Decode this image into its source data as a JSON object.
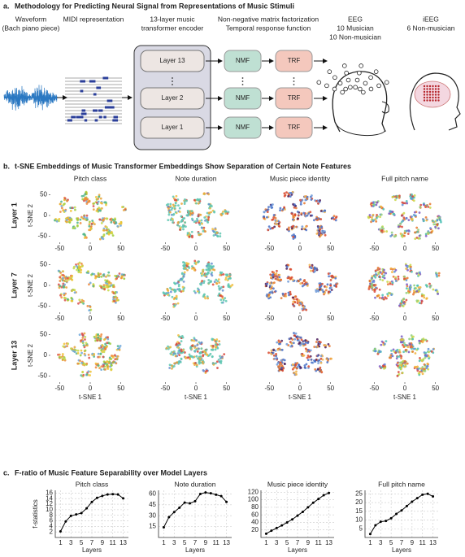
{
  "panel_a": {
    "label": "a.",
    "title": "Methodology for Predicting Neural Signal from Representations of Music Stimuli",
    "waveform": [
      "Waveform",
      "(Bach piano piece)"
    ],
    "midi": "MIDI representation",
    "encoder": [
      "13-layer music",
      "transformer encoder"
    ],
    "nmf_trf": [
      "Non-negative matrix factorization",
      "Temporal response function"
    ],
    "eeg": [
      "EEG",
      "10 Musician",
      "10 Non-musician"
    ],
    "ieeg": [
      "iEEG",
      "6 Non-musician"
    ],
    "layers": [
      "Layer 13",
      "Layer 2",
      "Layer 1"
    ],
    "nmf": "NMF",
    "trf": "TRF"
  },
  "panel_b": {
    "label": "b.",
    "title": "t-SNE Embeddings of Music Transformer Embeddings Show Separation of Certain Note Features",
    "columns": [
      "Pitch class",
      "Note duration",
      "Music piece identity",
      "Full pitch name"
    ],
    "rows": [
      "Layer 1",
      "Layer 7",
      "Layer 13"
    ],
    "xlabel": "t-SNE 1",
    "ylabel": "t-SNE 2",
    "xlim": [
      -65,
      65
    ],
    "xticks": [
      -50,
      0,
      50
    ],
    "ylim": [
      -65,
      65
    ],
    "yticks": [
      -50,
      0,
      50
    ]
  },
  "panel_c": {
    "label": "c.",
    "title": "F-ratio of Music Feature Separability over Model Layers",
    "xlabel": "Layers",
    "ylabel": "f-statistics",
    "charts": [
      {
        "type": "line",
        "title": "Pitch class",
        "x": [
          1,
          2,
          3,
          4,
          5,
          6,
          7,
          8,
          9,
          10,
          11,
          12,
          13
        ],
        "values": [
          2.2,
          5.8,
          7.8,
          8.3,
          8.8,
          10.5,
          12.8,
          14.3,
          15.0,
          15.5,
          15.6,
          15.5,
          14.1
        ],
        "xlim": [
          0,
          14
        ],
        "xticks": [
          1,
          3,
          5,
          7,
          9,
          11,
          13
        ],
        "ylim": [
          0,
          17
        ],
        "yticks": [
          2,
          4,
          6,
          8,
          10,
          12,
          14,
          16
        ],
        "grid": true,
        "color": "#000000"
      },
      {
        "type": "line",
        "title": "Note duration",
        "x": [
          1,
          2,
          3,
          4,
          5,
          6,
          7,
          8,
          9,
          10,
          11,
          12,
          13
        ],
        "values": [
          14,
          28,
          35,
          41,
          48,
          47,
          50,
          60,
          62,
          61,
          59,
          57,
          49
        ],
        "xlim": [
          0,
          14
        ],
        "xticks": [
          1,
          3,
          5,
          7,
          9,
          11,
          13
        ],
        "ylim": [
          0,
          65
        ],
        "yticks": [
          15,
          30,
          45,
          60
        ],
        "grid": true,
        "color": "#000000"
      },
      {
        "type": "line",
        "title": "Music piece identity",
        "x": [
          1,
          2,
          3,
          4,
          5,
          6,
          7,
          8,
          9,
          10,
          11,
          12,
          13
        ],
        "values": [
          10,
          18,
          25,
          32,
          40,
          48,
          58,
          68,
          80,
          92,
          102,
          112,
          118
        ],
        "xlim": [
          0,
          14
        ],
        "xticks": [
          1,
          3,
          5,
          7,
          9,
          11,
          13
        ],
        "ylim": [
          0,
          125
        ],
        "yticks": [
          20,
          40,
          60,
          80,
          100,
          120
        ],
        "grid": true,
        "color": "#000000"
      },
      {
        "type": "line",
        "title": "Full pitch name",
        "x": [
          1,
          2,
          3,
          4,
          5,
          6,
          7,
          8,
          9,
          10,
          11,
          12,
          13
        ],
        "values": [
          2,
          7,
          9,
          9.5,
          11,
          13.5,
          15.5,
          18,
          20.5,
          22.5,
          24.5,
          25,
          23.5
        ],
        "xlim": [
          0,
          14
        ],
        "xticks": [
          1,
          3,
          5,
          7,
          9,
          11,
          13
        ],
        "ylim": [
          0,
          27
        ],
        "yticks": [
          5,
          10,
          15,
          20,
          25
        ],
        "grid": true,
        "color": "#000000"
      }
    ]
  }
}
